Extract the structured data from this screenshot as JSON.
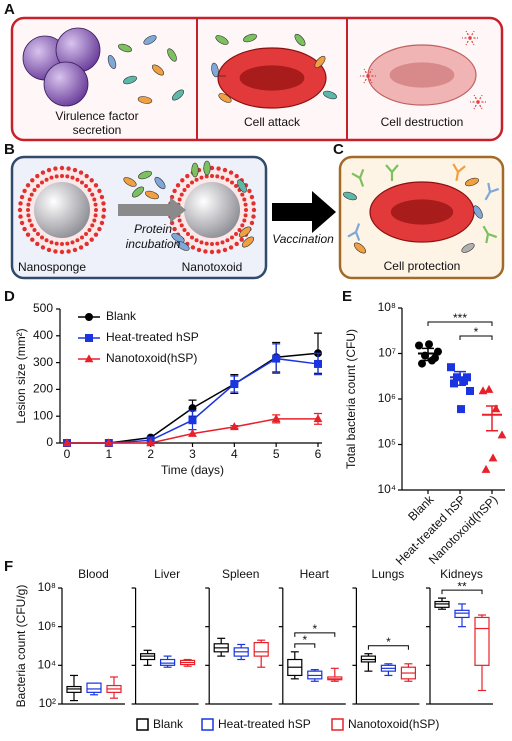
{
  "diagram": {
    "A": {
      "label": "A",
      "captions": [
        {
          "lines": [
            "Virulence factor",
            "secretion"
          ]
        },
        {
          "lines": [
            "Cell attack"
          ]
        },
        {
          "lines": [
            "Cell destruction"
          ]
        }
      ]
    },
    "B": {
      "label": "B",
      "left": "Nanosponge",
      "arrow": [
        "Protein",
        "incubation"
      ],
      "right": "Nanotoxoid"
    },
    "vaccination": "Vaccination",
    "C": {
      "label": "C",
      "caption": "Cell protection"
    }
  },
  "chart_data": [
    {
      "label": "D",
      "type": "line",
      "x": [
        0,
        1,
        2,
        3,
        4,
        5,
        6
      ],
      "xlim": [
        0,
        6
      ],
      "xticks": [
        0,
        1,
        2,
        3,
        4,
        5,
        6
      ],
      "ylim": [
        0,
        500
      ],
      "yticks": [
        0,
        100,
        200,
        300,
        400,
        500
      ],
      "x_label": "Time (days)",
      "y_label": "Lesion size (mm²)",
      "series": [
        {
          "name": "Blank",
          "color": "#000000",
          "marker": "circle",
          "values": [
            0,
            0,
            20,
            130,
            220,
            320,
            335
          ],
          "errors": [
            0,
            0,
            0,
            30,
            35,
            55,
            75
          ]
        },
        {
          "name": "Heat-treated hSP",
          "color": "#1a35e0",
          "marker": "square",
          "values": [
            0,
            0,
            10,
            85,
            220,
            315,
            295
          ],
          "errors": [
            0,
            0,
            0,
            35,
            30,
            55,
            40
          ]
        },
        {
          "name": "Nanotoxoid(hSP)",
          "color": "#e8202a",
          "marker": "triangle",
          "values": [
            0,
            0,
            0,
            35,
            60,
            90,
            90
          ],
          "errors": [
            0,
            0,
            0,
            0,
            5,
            15,
            20
          ]
        }
      ]
    },
    {
      "label": "E",
      "type": "dot",
      "log": true,
      "categories": [
        "Blank",
        "Heat-treated hSP",
        "Nanotoxoid(hSP)"
      ],
      "colors": [
        "#000000",
        "#1a35e0",
        "#e8202a"
      ],
      "markers": [
        "circle",
        "square",
        "triangle"
      ],
      "points": [
        [
          15000000,
          9000000,
          7000000,
          11000000,
          6000000,
          16000000,
          8000000
        ],
        [
          5000000,
          3000000,
          2500000,
          1500000,
          2200000,
          600000,
          3000000
        ],
        [
          1500000,
          1600000,
          600000,
          160000,
          28000,
          50000
        ]
      ],
      "means": [
        10000000,
        3000000,
        450000
      ],
      "errors": [
        3000000,
        1000000,
        250000
      ],
      "ylim": [
        10000,
        100000000
      ],
      "yticks": [
        {
          "value": 10000,
          "label": "10⁴"
        },
        {
          "value": 100000,
          "label": "10⁵"
        },
        {
          "value": 1000000,
          "label": "10⁶"
        },
        {
          "value": 10000000,
          "label": "10⁷"
        },
        {
          "value": 100000000,
          "label": "10⁸"
        }
      ],
      "y_label": "Total bacteria count (CFU)",
      "significance": [
        {
          "text": "*",
          "from": 1,
          "to": 2
        },
        {
          "text": "***",
          "from": 0,
          "to": 2
        }
      ]
    },
    {
      "label": "F",
      "type": "box",
      "log": true,
      "ylim": [
        100,
        100000000
      ],
      "yticks": [
        {
          "value": 100,
          "label": "10²"
        },
        {
          "value": 10000,
          "label": "10⁴"
        },
        {
          "value": 1000000,
          "label": "10⁶"
        },
        {
          "value": 100000000,
          "label": "10⁸"
        }
      ],
      "y_label": "Bacteria count (CFU/g)",
      "series": [
        {
          "name": "Blank",
          "color": "#000000"
        },
        {
          "name": "Heat-treated hSP",
          "color": "#1a35e0"
        },
        {
          "name": "Nanotoxoid(hSP)",
          "color": "#e8202a"
        }
      ],
      "panels": [
        {
          "title": "Blood",
          "boxes": [
            [
              150,
              400,
              600,
              800,
              3000
            ],
            [
              300,
              400,
              600,
              1200,
              1200
            ],
            [
              200,
              400,
              600,
              900,
              2500
            ]
          ]
        },
        {
          "title": "Liver",
          "boxes": [
            [
              10000,
              20000,
              30000,
              40000,
              60000
            ],
            [
              8000,
              10000,
              13000,
              20000,
              30000
            ],
            [
              9000,
              11000,
              14000,
              18000,
              20000
            ]
          ]
        },
        {
          "title": "Spleen",
          "boxes": [
            [
              30000,
              50000,
              80000,
              130000,
              250000
            ],
            [
              20000,
              30000,
              50000,
              80000,
              120000
            ],
            [
              8000,
              30000,
              50000,
              150000,
              200000
            ]
          ]
        },
        {
          "title": "Heart",
          "boxes": [
            [
              2000,
              3000,
              8000,
              20000,
              50000
            ],
            [
              1500,
              2000,
              3000,
              5000,
              6000
            ],
            [
              1500,
              1800,
              2000,
              2500,
              7000
            ]
          ],
          "significance": [
            {
              "text": "*",
              "from": 0,
              "to": 1
            },
            {
              "text": "*",
              "from": 0,
              "to": 2
            }
          ]
        },
        {
          "title": "Lungs",
          "boxes": [
            [
              5000,
              15000,
              20000,
              30000,
              40000
            ],
            [
              3000,
              5000,
              7000,
              10000,
              12000
            ],
            [
              1500,
              2000,
              4000,
              8000,
              12000
            ]
          ],
          "significance": [
            {
              "text": "*",
              "from": 0,
              "to": 2
            }
          ]
        },
        {
          "title": "Kidneys",
          "boxes": [
            [
              8000000,
              10000000,
              15000000,
              20000000,
              30000000
            ],
            [
              1000000,
              3000000,
              5000000,
              7000000,
              15000000
            ],
            [
              500,
              10000,
              800000,
              3000000,
              4000000
            ]
          ],
          "significance": [
            {
              "text": "**",
              "from": 0,
              "to": 2
            }
          ]
        }
      ]
    }
  ]
}
